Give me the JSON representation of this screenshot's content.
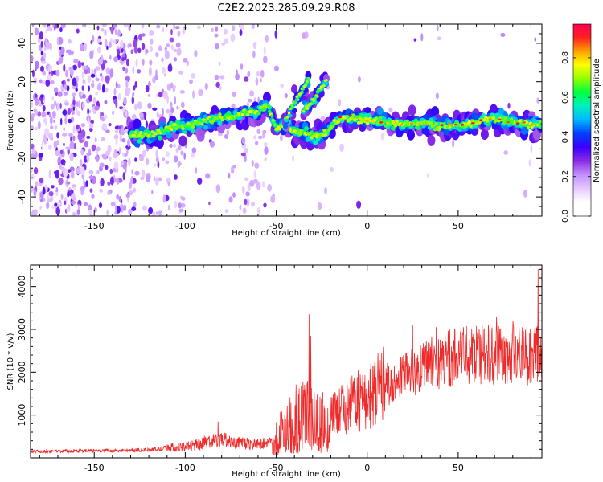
{
  "title": "C2E2.2023.285.09.29.R08",
  "chart_data": [
    {
      "type": "heatmap",
      "xlabel": "Height of straight line (km)",
      "ylabel": "Frequency (Hz)",
      "xlim": [
        -185,
        96
      ],
      "ylim": [
        -50,
        50
      ],
      "x_ticks": [
        -150,
        -100,
        -50,
        0,
        50
      ],
      "y_ticks": [
        -40,
        -20,
        0,
        20,
        40
      ],
      "colorbar": {
        "label": "Normalized spectral amplitude",
        "range": [
          0,
          0.97
        ],
        "ticks": [
          0.0,
          0.2,
          0.4,
          0.6,
          0.8
        ],
        "colors": [
          "#ffffff",
          "#ffffff",
          "#e6c8ff",
          "#c390ff",
          "#8a2be2",
          "#3a00ff",
          "#0040ff",
          "#00b8ff",
          "#00f0c0",
          "#00ff40",
          "#90ff00",
          "#ffff00",
          "#ffa000",
          "#ff2020",
          "#ff0050"
        ]
      },
      "ridge": [
        {
          "x": -130,
          "y": -8
        },
        {
          "x": -120,
          "y": -8
        },
        {
          "x": -110,
          "y": -5
        },
        {
          "x": -100,
          "y": -3
        },
        {
          "x": -90,
          "y": -1
        },
        {
          "x": -80,
          "y": 1
        },
        {
          "x": -70,
          "y": 3
        },
        {
          "x": -60,
          "y": 4
        },
        {
          "x": -55,
          "y": 8
        },
        {
          "x": -50,
          "y": -4
        },
        {
          "x": -45,
          "y": -3
        },
        {
          "x": -40,
          "y": -6
        },
        {
          "x": -35,
          "y": -6
        },
        {
          "x": -30,
          "y": -8
        },
        {
          "x": -25,
          "y": -8
        },
        {
          "x": -20,
          "y": -4
        },
        {
          "x": -15,
          "y": 1
        },
        {
          "x": -10,
          "y": 1
        },
        {
          "x": 0,
          "y": 0
        },
        {
          "x": 10,
          "y": -1
        },
        {
          "x": 20,
          "y": -2
        },
        {
          "x": 30,
          "y": -2
        },
        {
          "x": 40,
          "y": -3
        },
        {
          "x": 50,
          "y": -3
        },
        {
          "x": 60,
          "y": -1
        },
        {
          "x": 70,
          "y": 1
        },
        {
          "x": 80,
          "y": -1
        },
        {
          "x": 90,
          "y": -2
        },
        {
          "x": 96,
          "y": -2
        }
      ],
      "branches": [
        [
          {
            "x": -45,
            "y": 0
          },
          {
            "x": -38,
            "y": 12
          },
          {
            "x": -32,
            "y": 22
          }
        ],
        [
          {
            "x": -35,
            "y": 5
          },
          {
            "x": -28,
            "y": 12
          },
          {
            "x": -22,
            "y": 22
          }
        ]
      ]
    },
    {
      "type": "line",
      "xlabel": "Height of straight line (km)",
      "ylabel": "SNR (10 * v/v)",
      "xlim": [
        -185,
        96
      ],
      "ylim": [
        0,
        4500
      ],
      "x_ticks": [
        -150,
        -100,
        -50,
        0,
        50
      ],
      "y_ticks": [
        1000,
        2000,
        3000,
        4000
      ],
      "series": [
        {
          "color": "#ee2b2b",
          "trend": [
            {
              "x": -185,
              "y": 150
            },
            {
              "x": -160,
              "y": 160
            },
            {
              "x": -140,
              "y": 170
            },
            {
              "x": -120,
              "y": 190
            },
            {
              "x": -110,
              "y": 230
            },
            {
              "x": -100,
              "y": 260
            },
            {
              "x": -90,
              "y": 360
            },
            {
              "x": -80,
              "y": 430
            },
            {
              "x": -70,
              "y": 350
            },
            {
              "x": -60,
              "y": 300
            },
            {
              "x": -52,
              "y": 350
            },
            {
              "x": -46,
              "y": 650
            },
            {
              "x": -40,
              "y": 900
            },
            {
              "x": -30,
              "y": 1000
            },
            {
              "x": -20,
              "y": 950
            },
            {
              "x": -10,
              "y": 1200
            },
            {
              "x": 0,
              "y": 1450
            },
            {
              "x": 10,
              "y": 1700
            },
            {
              "x": 20,
              "y": 1900
            },
            {
              "x": 30,
              "y": 2100
            },
            {
              "x": 40,
              "y": 2250
            },
            {
              "x": 50,
              "y": 2350
            },
            {
              "x": 60,
              "y": 2400
            },
            {
              "x": 70,
              "y": 2400
            },
            {
              "x": 80,
              "y": 2400
            },
            {
              "x": 90,
              "y": 2400
            },
            {
              "x": 96,
              "y": 2450
            }
          ],
          "peaks": [
            {
              "x": -32,
              "y": 3350
            },
            {
              "x": -31,
              "y": 2850
            },
            {
              "x": 25,
              "y": 3100
            },
            {
              "x": 38,
              "y": 3050
            },
            {
              "x": 53,
              "y": 3050
            },
            {
              "x": 71,
              "y": 3300
            },
            {
              "x": 80,
              "y": 3200
            },
            {
              "x": 94,
              "y": 4400
            },
            {
              "x": -82,
              "y": 850
            }
          ]
        }
      ]
    }
  ]
}
